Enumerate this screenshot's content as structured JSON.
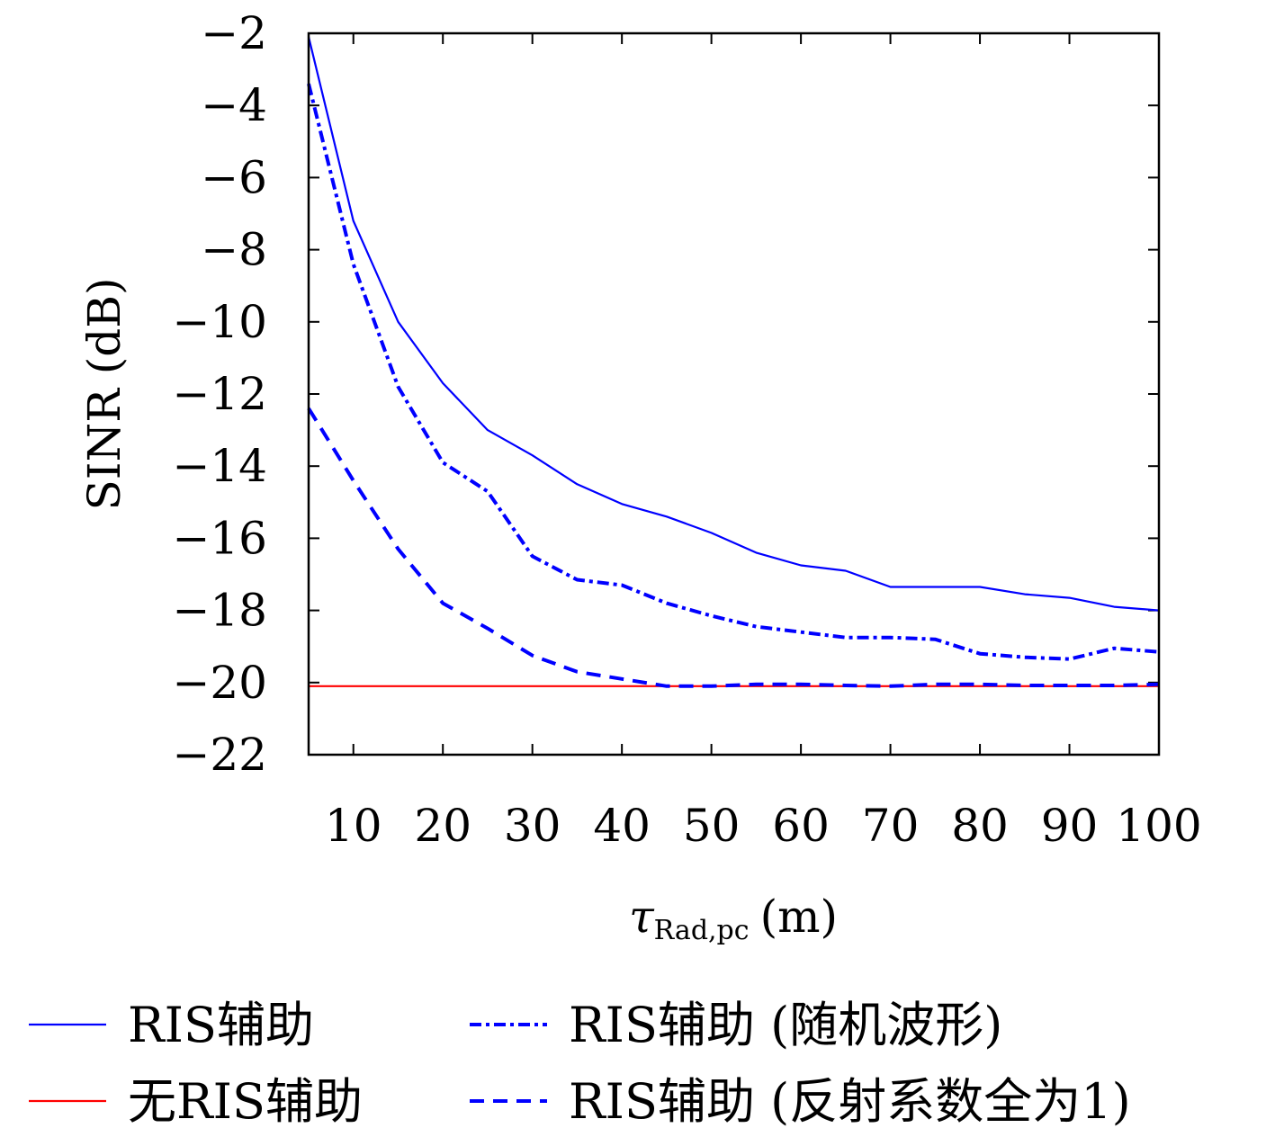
{
  "chart_data": {
    "type": "line",
    "xlabel": "τ",
    "xlabel_sub": "Rad,pc",
    "xlabel_unit": "(m)",
    "ylabel": "SINR (dB)",
    "xlim": [
      5,
      100
    ],
    "ylim": [
      -22,
      -2
    ],
    "xticks": [
      10,
      20,
      30,
      40,
      50,
      60,
      70,
      80,
      90,
      100
    ],
    "yticks": [
      -2,
      -4,
      -6,
      -8,
      -10,
      -12,
      -14,
      -16,
      -18,
      -20,
      -22
    ],
    "ytick_labels": [
      "−2",
      "−4",
      "−6",
      "−8",
      "−10",
      "−12",
      "−14",
      "−16",
      "−18",
      "−20",
      "−22"
    ],
    "grid": false,
    "legend_position": "bottom",
    "series": [
      {
        "name": "RIS辅助",
        "color": "#0000ff",
        "style": "solid",
        "x": [
          5,
          10,
          15,
          20,
          25,
          30,
          35,
          40,
          45,
          50,
          55,
          60,
          65,
          70,
          75,
          80,
          85,
          90,
          95,
          100
        ],
        "y": [
          -2.1,
          -7.2,
          -10.0,
          -11.7,
          -13.0,
          -13.7,
          -14.5,
          -15.05,
          -15.4,
          -15.85,
          -16.4,
          -16.75,
          -16.9,
          -17.35,
          -17.35,
          -17.35,
          -17.55,
          -17.65,
          -17.9,
          -18.0
        ]
      },
      {
        "name": "无RIS辅助",
        "color": "#ff0000",
        "style": "solid",
        "x": [
          5,
          100
        ],
        "y": [
          -20.1,
          -20.1
        ]
      },
      {
        "name": "RIS辅助 (随机波形)",
        "color": "#0000ff",
        "style": "dashdot",
        "x": [
          5,
          10,
          15,
          20,
          25,
          30,
          35,
          40,
          45,
          50,
          55,
          60,
          65,
          70,
          75,
          80,
          85,
          90,
          95,
          100
        ],
        "y": [
          -3.4,
          -8.4,
          -11.8,
          -13.9,
          -14.7,
          -16.5,
          -17.15,
          -17.3,
          -17.8,
          -18.15,
          -18.45,
          -18.6,
          -18.75,
          -18.75,
          -18.8,
          -19.2,
          -19.3,
          -19.35,
          -19.05,
          -19.15
        ]
      },
      {
        "name": "RIS辅助 (反射系数全为1)",
        "color": "#0000ff",
        "style": "dashed",
        "x": [
          5,
          10,
          15,
          20,
          25,
          30,
          35,
          40,
          45,
          50,
          55,
          60,
          65,
          70,
          75,
          80,
          85,
          90,
          95,
          100
        ],
        "y": [
          -12.4,
          -14.4,
          -16.3,
          -17.8,
          -18.5,
          -19.25,
          -19.7,
          -19.9,
          -20.1,
          -20.1,
          -20.05,
          -20.05,
          -20.08,
          -20.1,
          -20.05,
          -20.05,
          -20.08,
          -20.08,
          -20.08,
          -20.05
        ]
      }
    ]
  }
}
